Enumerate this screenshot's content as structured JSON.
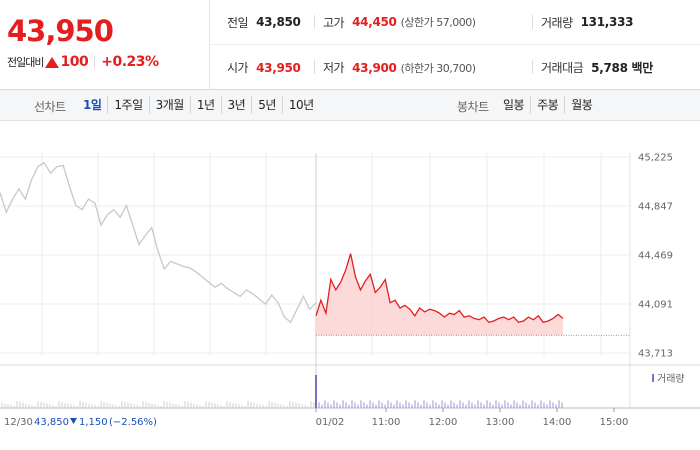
{
  "quote": {
    "price": "43,950",
    "change_label": "전일대비",
    "change_value": "100",
    "change_pct": "+0.23%"
  },
  "summary": {
    "prev_close_label": "전일",
    "prev_close": "43,850",
    "high_label": "고가",
    "high": "44,450",
    "upper_limit": "(상한가 57,000)",
    "volume_label": "거래량",
    "volume": "131,333",
    "open_label": "시가",
    "open": "43,950",
    "low_label": "저가",
    "low": "43,900",
    "lower_limit": "(하한가 30,700)",
    "value_label": "거래대금",
    "value": "5,788 백만"
  },
  "toolbar": {
    "line_chart_label": "선차트",
    "periods": [
      "1일",
      "1주일",
      "3개월",
      "1년",
      "3년",
      "5년",
      "10년"
    ],
    "selected_period": "1일",
    "candle_chart_label": "봉차트",
    "candle_periods": [
      "일봉",
      "주봉",
      "월봉"
    ]
  },
  "colors": {
    "up": "#e41e1e",
    "down": "#1a4fb8",
    "prev_day_line": "#c8c8cc",
    "today_fill": "#fbd4d4"
  },
  "chart_data": {
    "type": "line",
    "y_ticks": [
      "45,225",
      "44,847",
      "44,469",
      "44,091",
      "43,713"
    ],
    "ylim": [
      43713,
      45225
    ],
    "x_ticks": [
      "01/02",
      "11:00",
      "12:00",
      "13:00",
      "14:00",
      "15:00"
    ],
    "grid": true,
    "volume_legend": "거래량",
    "series": [
      {
        "name": "12/30",
        "color": "#c8c8cc",
        "values": [
          44950,
          44800,
          44900,
          44980,
          44900,
          45050,
          45150,
          45180,
          45100,
          45150,
          45160,
          45000,
          44850,
          44820,
          44900,
          44870,
          44700,
          44780,
          44820,
          44760,
          44850,
          44700,
          44550,
          44620,
          44680,
          44500,
          44360,
          44420,
          44400,
          44380,
          44370,
          44340,
          44300,
          44260,
          44220,
          44250,
          44210,
          44180,
          44150,
          44200,
          44170,
          44130,
          44090,
          44160,
          44100,
          43990,
          43950,
          44050,
          44150,
          44050,
          44100
        ]
      },
      {
        "name": "01/02",
        "color": "#e41e1e",
        "values": [
          44000,
          44120,
          44020,
          44280,
          44200,
          44260,
          44350,
          44480,
          44300,
          44200,
          44270,
          44320,
          44180,
          44220,
          44280,
          44100,
          44120,
          44060,
          44080,
          44050,
          44000,
          44060,
          44030,
          44050,
          44040,
          44020,
          43990,
          44020,
          44010,
          44040,
          43990,
          44000,
          43980,
          43970,
          43990,
          43950,
          43960,
          43980,
          43990,
          43970,
          43990,
          43950,
          43960,
          43990,
          43970,
          44000,
          43950,
          43960,
          43980,
          44010,
          43980
        ]
      }
    ],
    "footer_prev": {
      "date": "12/30",
      "close": "43,850",
      "change": "1,150",
      "change_pct": "(−2.56%)"
    }
  }
}
